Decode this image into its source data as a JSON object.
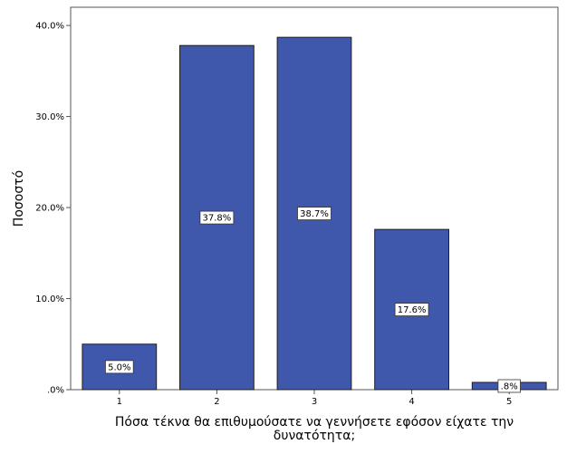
{
  "chart_data": {
    "type": "bar",
    "categories": [
      "1",
      "2",
      "3",
      "4",
      "5"
    ],
    "values": [
      5.0,
      37.8,
      38.7,
      17.6,
      0.8
    ],
    "data_labels": [
      "5.0%",
      "37.8%",
      "38.7%",
      "17.6%",
      ".8%"
    ],
    "xlabel_lines": [
      "Πόσα τέκνα θα επιθυμούσατε να γεννήσετε εφόσον είχατε την",
      "δυνατότητα;"
    ],
    "ylabel": "Ποσοστό",
    "ylim": [
      0,
      42
    ],
    "yticks": [
      0,
      10,
      20,
      30,
      40
    ],
    "ytick_labels": [
      ".0%",
      "10.0%",
      "20.0%",
      "30.0%",
      "40.0%"
    ],
    "grid": false,
    "bar_color": "#3f58ac",
    "bar_stroke": "#1f1f1f"
  }
}
